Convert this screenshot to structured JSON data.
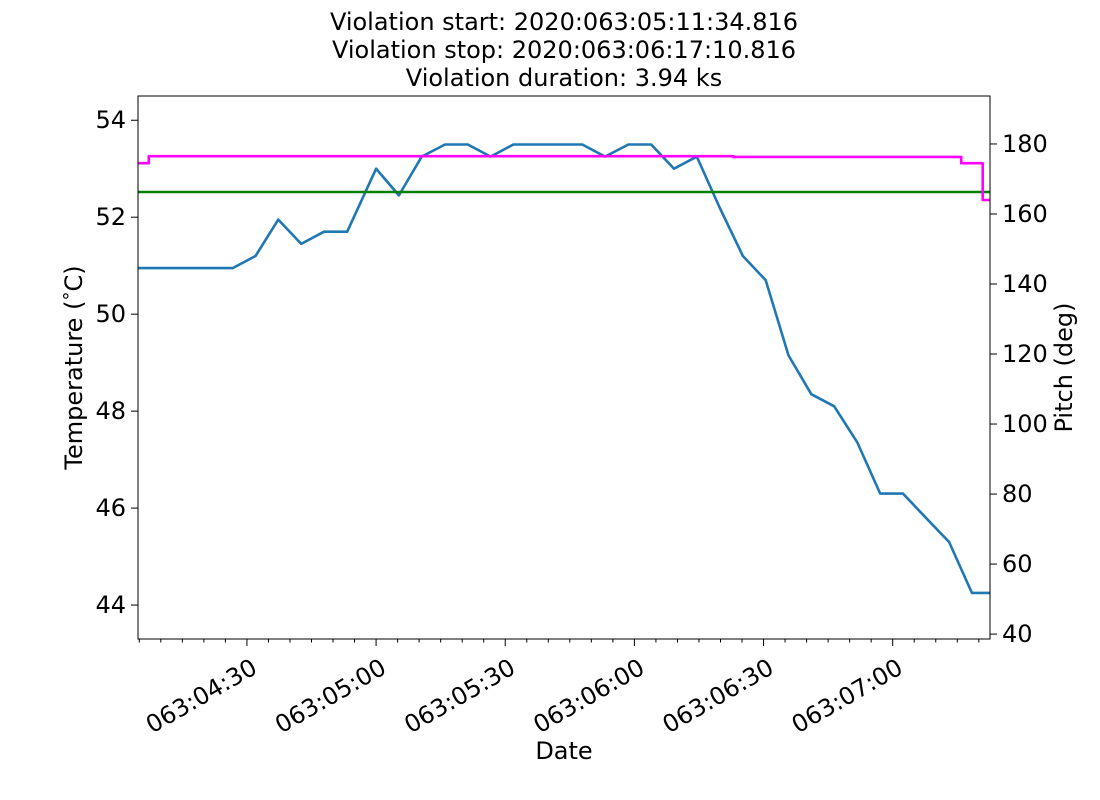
{
  "chart_data": {
    "type": "line",
    "title_lines": [
      "Violation start: 2020:063:05:11:34.816",
      "Violation stop: 2020:063:06:17:10.816",
      "Violation duration: 3.94 ks"
    ],
    "xlabel": "Date",
    "ylabel_left": "Temperature ($^\\circ$C)",
    "ylabel_right": "Pitch (deg)",
    "x_unit": "minutes within day 063 (HH*60+MM)",
    "xlim": [
      244.7,
      442.6
    ],
    "x_ticks": [
      {
        "x": 270,
        "label": "063:04:30"
      },
      {
        "x": 300,
        "label": "063:05:00"
      },
      {
        "x": 330,
        "label": "063:05:30"
      },
      {
        "x": 360,
        "label": "063:06:00"
      },
      {
        "x": 390,
        "label": "063:06:30"
      },
      {
        "x": 420,
        "label": "063:07:00"
      }
    ],
    "y_left_lim": [
      43.3,
      54.5
    ],
    "y_left_ticks": [
      44,
      46,
      48,
      50,
      52,
      54
    ],
    "y_right_lim": [
      38.6,
      193.7
    ],
    "y_right_ticks": [
      40,
      60,
      80,
      100,
      120,
      140,
      160,
      180
    ],
    "grid": false,
    "series": [
      {
        "axis": "left",
        "color": "#1f77b4",
        "x": [
          244.7,
          266.7,
          272.0,
          277.3,
          282.6,
          287.9,
          293.3,
          300.0,
          305.3,
          310.6,
          316.0,
          321.3,
          326.6,
          331.9,
          337.3,
          342.6,
          347.9,
          353.2,
          358.6,
          363.9,
          369.2,
          374.5,
          379.8,
          385.2,
          390.5,
          395.8,
          401.1,
          406.4,
          411.8,
          417.1,
          422.4,
          427.7,
          433.1,
          438.4,
          442.6
        ],
        "y": [
          50.95,
          50.95,
          51.2,
          51.95,
          51.45,
          51.7,
          51.7,
          53.0,
          52.45,
          53.25,
          53.5,
          53.5,
          53.25,
          53.5,
          53.5,
          53.5,
          53.5,
          53.25,
          53.5,
          53.5,
          53.0,
          53.25,
          52.2,
          51.2,
          50.7,
          49.15,
          48.35,
          48.1,
          47.35,
          46.3,
          46.3,
          45.8,
          45.3,
          44.25,
          44.25
        ]
      },
      {
        "axis": "left",
        "color": "#008000",
        "x": [
          244.7,
          442.6
        ],
        "y": [
          52.52,
          52.52
        ]
      },
      {
        "axis": "right",
        "color": "#ff00ff",
        "step": true,
        "x": [
          244.7,
          247.2,
          247.2,
          383.0,
          383.0,
          435.9,
          435.9,
          440.9,
          440.9,
          442.6
        ],
        "y": [
          174.5,
          174.5,
          176.5,
          176.5,
          176.3,
          176.3,
          174.5,
          174.5,
          164.0,
          164.0
        ]
      }
    ]
  }
}
